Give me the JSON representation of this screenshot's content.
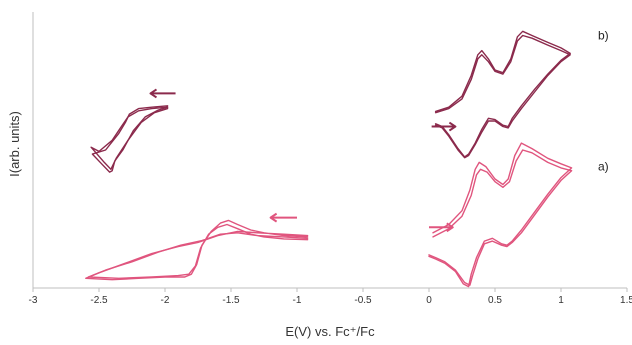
{
  "chart_data": {
    "type": "line",
    "title": "",
    "xlabel": "E(V) vs. Fc⁺/Fc",
    "ylabel": "I(arb. units)",
    "xlim": [
      -3,
      1.5
    ],
    "ylim": [
      0,
      10
    ],
    "x_ticks": [
      "-3",
      "-2.5",
      "-2",
      "-1.5",
      "-1",
      "-0.5",
      "0",
      "0.5",
      "1",
      "1.5"
    ],
    "y_ticks_shown": false,
    "grid": false,
    "legend": "none",
    "colors": {
      "b": "#8b2a4c",
      "a": "#e0557e",
      "axis": "#bfbfbf"
    },
    "series": [
      {
        "name": "b)",
        "label_anchor": {
          "x": 1.28,
          "y": 9.0
        },
        "scan_arrows": [
          {
            "x_from": -1.92,
            "x_to": -2.11,
            "y": 7.05
          },
          {
            "x_from": 0.02,
            "x_to": 0.2,
            "y": 5.85
          }
        ],
        "segments": [
          [
            [
              -1.98,
              6.6
            ],
            [
              -2.1,
              6.55
            ],
            [
              -2.2,
              6.5
            ],
            [
              -2.27,
              6.3
            ],
            [
              -2.3,
              6.0
            ],
            [
              -2.35,
              5.6
            ],
            [
              -2.45,
              5.0
            ],
            [
              -2.55,
              4.85
            ],
            [
              -2.48,
              4.5
            ],
            [
              -2.42,
              4.2
            ],
            [
              -2.4,
              4.25
            ],
            [
              -2.38,
              4.6
            ],
            [
              -2.32,
              5.0
            ],
            [
              -2.24,
              5.7
            ],
            [
              -2.15,
              6.2
            ],
            [
              -2.05,
              6.45
            ],
            [
              -1.98,
              6.55
            ]
          ],
          [
            [
              -1.98,
              6.55
            ],
            [
              -2.1,
              6.5
            ],
            [
              -2.2,
              6.42
            ],
            [
              -2.28,
              6.2
            ],
            [
              -2.33,
              5.85
            ],
            [
              -2.4,
              5.35
            ],
            [
              -2.5,
              4.95
            ],
            [
              -2.56,
              5.1
            ],
            [
              -2.46,
              4.55
            ],
            [
              -2.41,
              4.3
            ],
            [
              -2.37,
              4.7
            ],
            [
              -2.28,
              5.35
            ],
            [
              -2.18,
              6.0
            ],
            [
              -2.08,
              6.35
            ],
            [
              -1.98,
              6.5
            ]
          ],
          [
            [
              0.05,
              6.4
            ],
            [
              0.15,
              6.55
            ],
            [
              0.25,
              6.95
            ],
            [
              0.32,
              7.7
            ],
            [
              0.37,
              8.45
            ],
            [
              0.4,
              8.6
            ],
            [
              0.45,
              8.3
            ],
            [
              0.5,
              7.9
            ],
            [
              0.56,
              7.8
            ],
            [
              0.62,
              8.3
            ],
            [
              0.67,
              9.1
            ],
            [
              0.71,
              9.3
            ],
            [
              0.78,
              9.15
            ],
            [
              0.9,
              8.9
            ],
            [
              1.0,
              8.7
            ],
            [
              1.07,
              8.5
            ],
            [
              1.0,
              8.25
            ],
            [
              0.9,
              7.75
            ],
            [
              0.8,
              7.2
            ],
            [
              0.7,
              6.6
            ],
            [
              0.63,
              6.15
            ],
            [
              0.6,
              5.85
            ],
            [
              0.56,
              5.9
            ],
            [
              0.5,
              6.1
            ],
            [
              0.45,
              6.15
            ],
            [
              0.4,
              5.75
            ],
            [
              0.35,
              5.25
            ],
            [
              0.3,
              4.85
            ],
            [
              0.27,
              4.75
            ],
            [
              0.22,
              5.05
            ],
            [
              0.15,
              5.55
            ],
            [
              0.1,
              5.85
            ],
            [
              0.05,
              5.95
            ]
          ],
          [
            [
              0.05,
              6.35
            ],
            [
              0.15,
              6.5
            ],
            [
              0.25,
              6.85
            ],
            [
              0.32,
              7.55
            ],
            [
              0.37,
              8.3
            ],
            [
              0.4,
              8.45
            ],
            [
              0.45,
              8.2
            ],
            [
              0.5,
              7.85
            ],
            [
              0.56,
              7.75
            ],
            [
              0.62,
              8.2
            ],
            [
              0.67,
              8.95
            ],
            [
              0.71,
              9.15
            ],
            [
              0.78,
              9.05
            ],
            [
              0.9,
              8.8
            ],
            [
              1.0,
              8.6
            ],
            [
              1.07,
              8.45
            ],
            [
              1.0,
              8.2
            ],
            [
              0.9,
              7.7
            ],
            [
              0.8,
              7.1
            ],
            [
              0.7,
              6.5
            ],
            [
              0.63,
              6.05
            ],
            [
              0.6,
              5.8
            ],
            [
              0.56,
              5.85
            ],
            [
              0.5,
              6.05
            ],
            [
              0.45,
              6.05
            ],
            [
              0.4,
              5.65
            ],
            [
              0.35,
              5.2
            ],
            [
              0.3,
              4.8
            ],
            [
              0.27,
              4.72
            ],
            [
              0.22,
              5.0
            ],
            [
              0.15,
              5.5
            ],
            [
              0.1,
              5.8
            ],
            [
              0.05,
              5.9
            ]
          ]
        ]
      },
      {
        "name": "a)",
        "label_anchor": {
          "x": 1.28,
          "y": 4.25
        },
        "scan_arrows": [
          {
            "x_from": -1.0,
            "x_to": -1.2,
            "y": 2.55
          },
          {
            "x_from": 0.0,
            "x_to": 0.18,
            "y": 2.2
          }
        ],
        "segments": [
          [
            [
              -0.92,
              1.85
            ],
            [
              -1.1,
              1.9
            ],
            [
              -1.25,
              2.0
            ],
            [
              -1.35,
              2.1
            ],
            [
              -1.45,
              2.3
            ],
            [
              -1.52,
              2.45
            ],
            [
              -1.58,
              2.35
            ],
            [
              -1.65,
              2.05
            ],
            [
              -1.72,
              1.55
            ],
            [
              -1.76,
              0.85
            ],
            [
              -1.8,
              0.5
            ],
            [
              -1.85,
              0.4
            ],
            [
              -2.0,
              0.4
            ],
            [
              -2.2,
              0.35
            ],
            [
              -2.4,
              0.3
            ],
            [
              -2.6,
              0.35
            ],
            [
              -2.5,
              0.55
            ],
            [
              -2.3,
              0.9
            ],
            [
              -2.1,
              1.25
            ],
            [
              -1.9,
              1.5
            ],
            [
              -1.75,
              1.65
            ],
            [
              -1.6,
              1.9
            ],
            [
              -1.45,
              2.05
            ],
            [
              -1.3,
              2.0
            ],
            [
              -1.1,
              1.95
            ],
            [
              -0.92,
              1.9
            ]
          ],
          [
            [
              -0.92,
              1.75
            ],
            [
              -1.1,
              1.78
            ],
            [
              -1.25,
              1.85
            ],
            [
              -1.35,
              1.95
            ],
            [
              -1.45,
              2.15
            ],
            [
              -1.53,
              2.3
            ],
            [
              -1.6,
              2.2
            ],
            [
              -1.67,
              1.95
            ],
            [
              -1.73,
              1.45
            ],
            [
              -1.77,
              0.8
            ],
            [
              -1.82,
              0.5
            ],
            [
              -1.9,
              0.45
            ],
            [
              -2.1,
              0.4
            ],
            [
              -2.35,
              0.35
            ],
            [
              -2.58,
              0.4
            ],
            [
              -2.45,
              0.65
            ],
            [
              -2.25,
              0.95
            ],
            [
              -2.05,
              1.3
            ],
            [
              -1.88,
              1.55
            ],
            [
              -1.72,
              1.72
            ],
            [
              -1.58,
              1.95
            ],
            [
              -1.45,
              2.0
            ],
            [
              -1.3,
              1.9
            ],
            [
              -1.1,
              1.85
            ],
            [
              -0.92,
              1.8
            ]
          ],
          [
            [
              0.03,
              2.0
            ],
            [
              0.15,
              2.3
            ],
            [
              0.25,
              2.8
            ],
            [
              0.31,
              3.55
            ],
            [
              0.35,
              4.3
            ],
            [
              0.38,
              4.55
            ],
            [
              0.43,
              4.4
            ],
            [
              0.5,
              3.95
            ],
            [
              0.56,
              3.75
            ],
            [
              0.6,
              3.95
            ],
            [
              0.65,
              4.8
            ],
            [
              0.7,
              5.25
            ],
            [
              0.78,
              5.05
            ],
            [
              0.9,
              4.7
            ],
            [
              1.0,
              4.5
            ],
            [
              1.08,
              4.35
            ],
            [
              1.0,
              4.0
            ],
            [
              0.9,
              3.4
            ],
            [
              0.8,
              2.75
            ],
            [
              0.7,
              2.1
            ],
            [
              0.63,
              1.7
            ],
            [
              0.59,
              1.55
            ],
            [
              0.55,
              1.6
            ],
            [
              0.48,
              1.8
            ],
            [
              0.42,
              1.7
            ],
            [
              0.36,
              1.1
            ],
            [
              0.32,
              0.5
            ],
            [
              0.3,
              0.05
            ],
            [
              0.26,
              0.15
            ],
            [
              0.2,
              0.6
            ],
            [
              0.12,
              0.9
            ],
            [
              0.05,
              1.05
            ],
            [
              0.0,
              1.15
            ]
          ],
          [
            [
              0.03,
              1.85
            ],
            [
              0.15,
              2.15
            ],
            [
              0.25,
              2.6
            ],
            [
              0.32,
              3.35
            ],
            [
              0.36,
              4.1
            ],
            [
              0.39,
              4.3
            ],
            [
              0.44,
              4.2
            ],
            [
              0.5,
              3.85
            ],
            [
              0.56,
              3.65
            ],
            [
              0.61,
              3.85
            ],
            [
              0.66,
              4.6
            ],
            [
              0.71,
              5.0
            ],
            [
              0.78,
              4.9
            ],
            [
              0.9,
              4.55
            ],
            [
              1.0,
              4.35
            ],
            [
              1.08,
              4.25
            ],
            [
              1.0,
              3.9
            ],
            [
              0.9,
              3.3
            ],
            [
              0.8,
              2.65
            ],
            [
              0.7,
              2.0
            ],
            [
              0.63,
              1.65
            ],
            [
              0.59,
              1.5
            ],
            [
              0.55,
              1.55
            ],
            [
              0.48,
              1.7
            ],
            [
              0.42,
              1.6
            ],
            [
              0.37,
              1.05
            ],
            [
              0.33,
              0.45
            ],
            [
              0.31,
              0.1
            ],
            [
              0.27,
              0.2
            ],
            [
              0.2,
              0.65
            ],
            [
              0.12,
              0.95
            ],
            [
              0.05,
              1.1
            ],
            [
              0.0,
              1.2
            ]
          ]
        ]
      }
    ]
  }
}
